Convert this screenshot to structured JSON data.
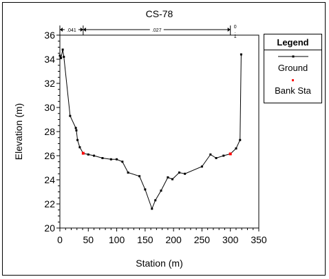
{
  "chart_data": {
    "type": "line",
    "title": "CS-78",
    "xlabel": "Station (m)",
    "ylabel": "Elevation (m)",
    "xlim": [
      0,
      350
    ],
    "ylim": [
      20,
      36
    ],
    "xticks": [
      0,
      50,
      100,
      150,
      200,
      250,
      300,
      350
    ],
    "yticks": [
      20,
      22,
      24,
      26,
      28,
      30,
      32,
      34,
      36
    ],
    "grid": false,
    "legend_position": "right",
    "legend": {
      "title": "Legend",
      "entries": [
        {
          "label": "Ground",
          "color": "#000000"
        },
        {
          "label": "Bank Sta",
          "color": "#ff0000"
        }
      ]
    },
    "reach_lengths": [
      {
        "label": ".041",
        "from": 0,
        "to": 41
      },
      {
        "label": ".027",
        "from": 41,
        "to": 300
      },
      {
        "label": "0.1",
        "from": 300,
        "to": 300
      }
    ],
    "series": [
      {
        "name": "Ground",
        "color": "#000000",
        "x": [
          0,
          2,
          5,
          7,
          18,
          28,
          29,
          31,
          35,
          41,
          50,
          60,
          75,
          90,
          100,
          110,
          120,
          140,
          150,
          162,
          168,
          178,
          190,
          198,
          210,
          220,
          250,
          265,
          275,
          288,
          300,
          310,
          317,
          319
        ],
        "y": [
          34.3,
          34.1,
          34.8,
          34.2,
          29.3,
          28.3,
          28.1,
          27.3,
          26.7,
          26.2,
          26.1,
          26.0,
          25.8,
          25.7,
          25.7,
          25.5,
          24.6,
          24.3,
          23.2,
          21.6,
          22.3,
          23.1,
          24.2,
          24.05,
          24.6,
          24.5,
          25.1,
          26.1,
          25.8,
          26.0,
          26.15,
          26.6,
          27.3,
          34.4
        ]
      }
    ],
    "bank_stations": [
      {
        "x": 41,
        "y": 26.2
      },
      {
        "x": 300,
        "y": 26.15
      }
    ]
  }
}
